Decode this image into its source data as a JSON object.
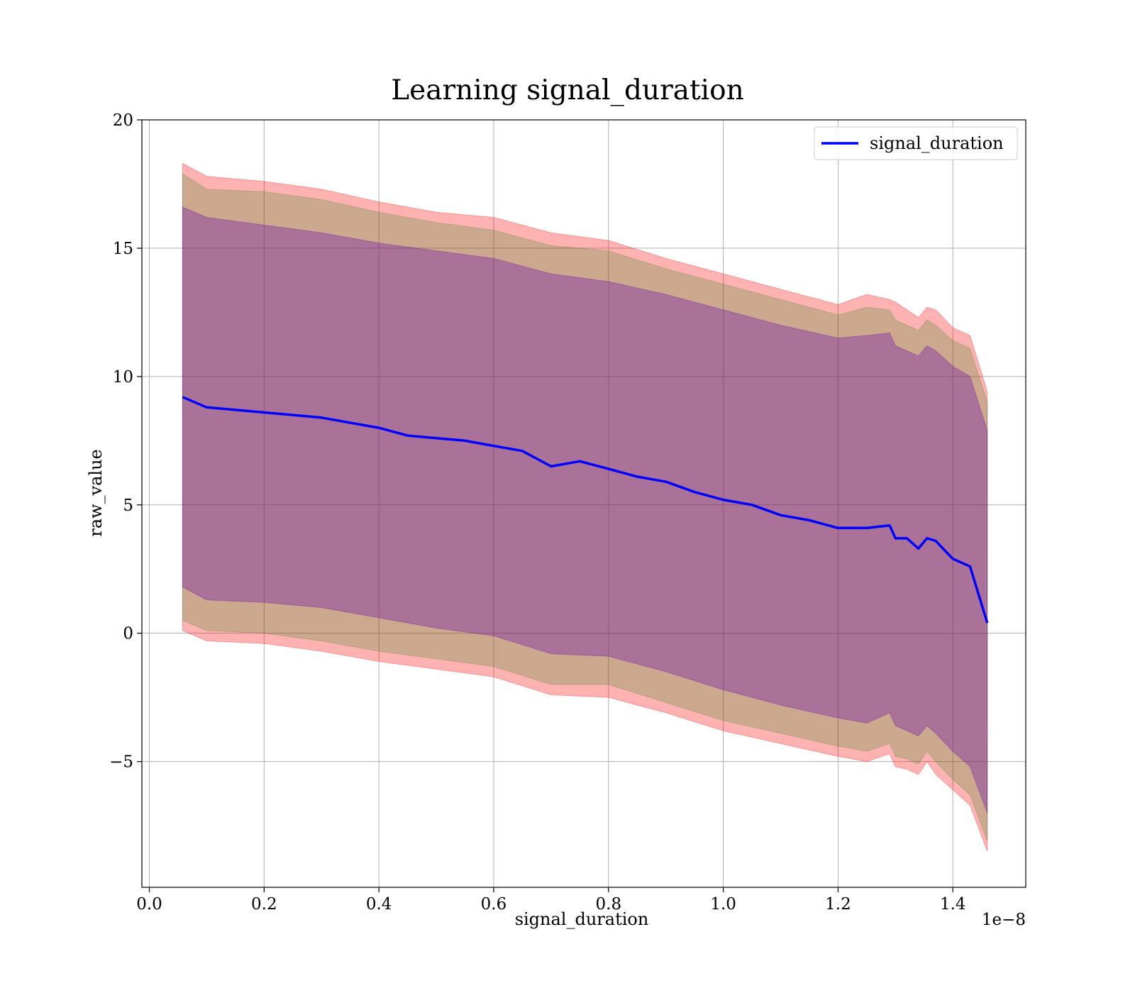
{
  "chart_data": {
    "type": "line",
    "title": "Learning signal_duration",
    "xlabel": "signal_duration",
    "ylabel": "raw_value",
    "x_offset_label": "1e−8",
    "xlim": [
      -1.3e-10,
      1.527e-08
    ],
    "ylim": [
      -9.9,
      20
    ],
    "x_ticks": [
      0.0,
      2e-09,
      4e-09,
      6e-09,
      8e-09,
      1e-08,
      1.2e-08,
      1.4e-08
    ],
    "x_tick_labels": [
      "0.0",
      "0.2",
      "0.4",
      "0.6",
      "0.8",
      "1.0",
      "1.2",
      "1.4"
    ],
    "y_ticks": [
      -5,
      0,
      5,
      10,
      15,
      20
    ],
    "y_tick_labels": [
      "−5",
      "0",
      "5",
      "10",
      "15",
      "20"
    ],
    "grid": true,
    "legend_position": "top-right",
    "series": [
      {
        "name": "signal_duration",
        "color": "#0000ff",
        "x": [
          5.8e-10,
          1e-09,
          2e-09,
          3e-09,
          4e-09,
          4.5e-09,
          5e-09,
          5.5e-09,
          6e-09,
          6.5e-09,
          7e-09,
          7.5e-09,
          8e-09,
          8.5e-09,
          9e-09,
          9.5e-09,
          1e-08,
          1.05e-08,
          1.1e-08,
          1.15e-08,
          1.2e-08,
          1.25e-08,
          1.29e-08,
          1.3e-08,
          1.32e-08,
          1.34e-08,
          1.355e-08,
          1.37e-08,
          1.4e-08,
          1.43e-08,
          1.46e-08
        ],
        "y": [
          9.2,
          8.8,
          8.6,
          8.4,
          8.0,
          7.7,
          7.6,
          7.5,
          7.3,
          7.1,
          6.5,
          6.7,
          6.4,
          6.1,
          5.9,
          5.5,
          5.2,
          5.0,
          4.6,
          4.4,
          4.1,
          4.1,
          4.2,
          3.7,
          3.7,
          3.3,
          3.7,
          3.6,
          2.9,
          2.6,
          0.4
        ]
      }
    ],
    "bands": [
      {
        "color": "#ff0000",
        "opacity": 0.3,
        "x": [
          5.8e-10,
          1e-09,
          2e-09,
          3e-09,
          4e-09,
          5e-09,
          6e-09,
          7e-09,
          8e-09,
          9e-09,
          1e-08,
          1.1e-08,
          1.2e-08,
          1.25e-08,
          1.29e-08,
          1.3e-08,
          1.32e-08,
          1.34e-08,
          1.355e-08,
          1.37e-08,
          1.4e-08,
          1.43e-08,
          1.46e-08
        ],
        "upper": [
          18.3,
          17.8,
          17.6,
          17.3,
          16.8,
          16.4,
          16.2,
          15.6,
          15.3,
          14.6,
          14.0,
          13.4,
          12.8,
          13.2,
          13.0,
          12.9,
          12.6,
          12.3,
          12.7,
          12.6,
          11.9,
          11.6,
          9.4
        ],
        "lower": [
          0.1,
          -0.3,
          -0.4,
          -0.7,
          -1.1,
          -1.4,
          -1.7,
          -2.4,
          -2.5,
          -3.1,
          -3.8,
          -4.3,
          -4.8,
          -5.0,
          -4.7,
          -5.2,
          -5.3,
          -5.5,
          -5.0,
          -5.5,
          -6.1,
          -6.7,
          -8.5
        ]
      },
      {
        "color": "#008000",
        "opacity": 0.2,
        "x": [
          5.8e-10,
          1e-09,
          2e-09,
          3e-09,
          4e-09,
          5e-09,
          6e-09,
          7e-09,
          8e-09,
          9e-09,
          1e-08,
          1.1e-08,
          1.2e-08,
          1.25e-08,
          1.29e-08,
          1.3e-08,
          1.32e-08,
          1.34e-08,
          1.355e-08,
          1.37e-08,
          1.4e-08,
          1.43e-08,
          1.46e-08
        ],
        "upper": [
          17.9,
          17.3,
          17.2,
          16.9,
          16.4,
          16.0,
          15.7,
          15.1,
          14.9,
          14.2,
          13.6,
          13.0,
          12.4,
          12.7,
          12.6,
          12.2,
          12.0,
          11.8,
          12.2,
          12.0,
          11.4,
          11.1,
          9.0
        ],
        "lower": [
          0.5,
          0.1,
          0.0,
          -0.3,
          -0.7,
          -1.0,
          -1.3,
          -2.0,
          -2.0,
          -2.7,
          -3.4,
          -3.9,
          -4.4,
          -4.6,
          -4.3,
          -4.8,
          -4.9,
          -5.1,
          -4.6,
          -5.0,
          -5.7,
          -6.3,
          -8.1
        ]
      },
      {
        "color": "#6a0dad",
        "opacity": 0.35,
        "x": [
          5.8e-10,
          1e-09,
          2e-09,
          3e-09,
          4e-09,
          5e-09,
          6e-09,
          7e-09,
          8e-09,
          9e-09,
          1e-08,
          1.1e-08,
          1.2e-08,
          1.25e-08,
          1.29e-08,
          1.3e-08,
          1.32e-08,
          1.34e-08,
          1.355e-08,
          1.37e-08,
          1.4e-08,
          1.43e-08,
          1.46e-08
        ],
        "upper": [
          16.6,
          16.2,
          15.9,
          15.6,
          15.2,
          14.9,
          14.6,
          14.0,
          13.7,
          13.2,
          12.6,
          12.0,
          11.5,
          11.6,
          11.7,
          11.2,
          11.0,
          10.8,
          11.2,
          11.0,
          10.4,
          10.0,
          7.9
        ],
        "lower": [
          1.8,
          1.3,
          1.2,
          1.0,
          0.6,
          0.2,
          -0.1,
          -0.8,
          -0.9,
          -1.5,
          -2.2,
          -2.8,
          -3.3,
          -3.5,
          -3.1,
          -3.6,
          -3.8,
          -4.0,
          -3.6,
          -3.9,
          -4.6,
          -5.2,
          -7.0
        ]
      }
    ]
  }
}
